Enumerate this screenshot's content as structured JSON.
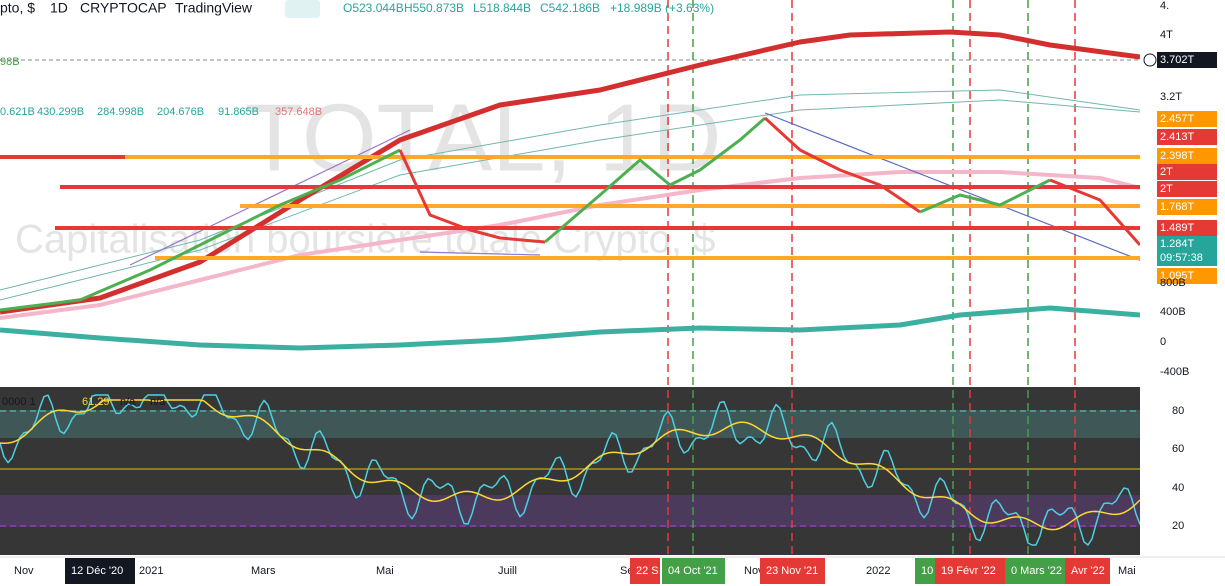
{
  "header": {
    "symbol": "pto, $",
    "interval": "1D",
    "exchange": "CRYPTOCAP",
    "source": "TradingView",
    "ohlc": [
      "O523.044B",
      "H550.873B",
      "L518.844B",
      "C542.186B"
    ],
    "change": "+18.989B (+3.63%)",
    "currency": "USD"
  },
  "watermark": {
    "title": "TOTAL, 1D",
    "subtitle": "Capitalisation boursière totale Crypto, $"
  },
  "indicators": {
    "left": "98B",
    "values": [
      "0.621B",
      "430.299B",
      "284.998B",
      "204.676B",
      "91.865B",
      "357.648B"
    ]
  },
  "price_axis": {
    "labels": [
      "4.",
      "4T",
      "3.702T",
      "3.2T",
      "2.457T",
      "2.413T",
      "2.398T",
      "2T",
      "2T",
      "1.768T",
      "1.489T",
      "1.284T",
      "09:57:38",
      "1.095T",
      "800B",
      "400B",
      "0",
      "-400B"
    ]
  },
  "rsi": {
    "legend": [
      "0000 1",
      "61.29",
      "n/a",
      "n/a"
    ],
    "axis": [
      "80",
      "60",
      "40",
      "20"
    ]
  },
  "time_axis": [
    "Nov",
    "12 Déc '20",
    "2021",
    "Mars",
    "Mai",
    "Juill",
    "Sep",
    "22 S",
    "04 Oct '21",
    "Nov",
    "23 Nov '21",
    "2022",
    "10",
    "19 Févr '22",
    "0 Mars '22",
    "Avr '22",
    "Mai"
  ]
}
